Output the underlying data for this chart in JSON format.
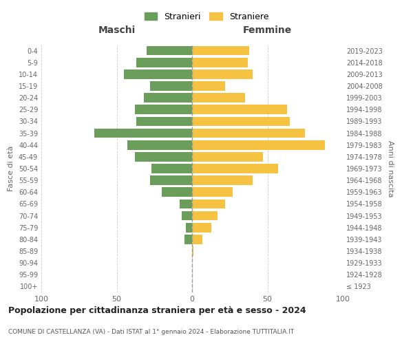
{
  "age_groups": [
    "100+",
    "95-99",
    "90-94",
    "85-89",
    "80-84",
    "75-79",
    "70-74",
    "65-69",
    "60-64",
    "55-59",
    "50-54",
    "45-49",
    "40-44",
    "35-39",
    "30-34",
    "25-29",
    "20-24",
    "15-19",
    "10-14",
    "5-9",
    "0-4"
  ],
  "birth_years": [
    "≤ 1923",
    "1924-1928",
    "1929-1933",
    "1934-1938",
    "1939-1943",
    "1944-1948",
    "1949-1953",
    "1954-1958",
    "1959-1963",
    "1964-1968",
    "1969-1973",
    "1974-1978",
    "1979-1983",
    "1984-1988",
    "1989-1993",
    "1994-1998",
    "1999-2003",
    "2004-2008",
    "2009-2013",
    "2014-2018",
    "2019-2023"
  ],
  "maschi": [
    0,
    0,
    0,
    0,
    5,
    4,
    7,
    8,
    20,
    28,
    27,
    38,
    43,
    65,
    37,
    38,
    32,
    28,
    45,
    37,
    30
  ],
  "femmine": [
    0,
    0,
    0,
    1,
    7,
    13,
    17,
    22,
    27,
    40,
    57,
    47,
    88,
    75,
    65,
    63,
    35,
    22,
    40,
    37,
    38
  ],
  "maschi_color": "#6a9e5a",
  "femmine_color": "#f5c242",
  "background_color": "#ffffff",
  "grid_color": "#cccccc",
  "title": "Popolazione per cittadinanza straniera per età e sesso - 2024",
  "subtitle": "COMUNE DI CASTELLANZA (VA) - Dati ISTAT al 1° gennaio 2024 - Elaborazione TUTTITALIA.IT",
  "xlabel_left": "Maschi",
  "xlabel_right": "Femmine",
  "ylabel_left": "Fasce di età",
  "ylabel_right": "Anni di nascita",
  "legend_stranieri": "Stranieri",
  "legend_straniere": "Straniere",
  "xlim": 100,
  "bar_height": 0.8
}
